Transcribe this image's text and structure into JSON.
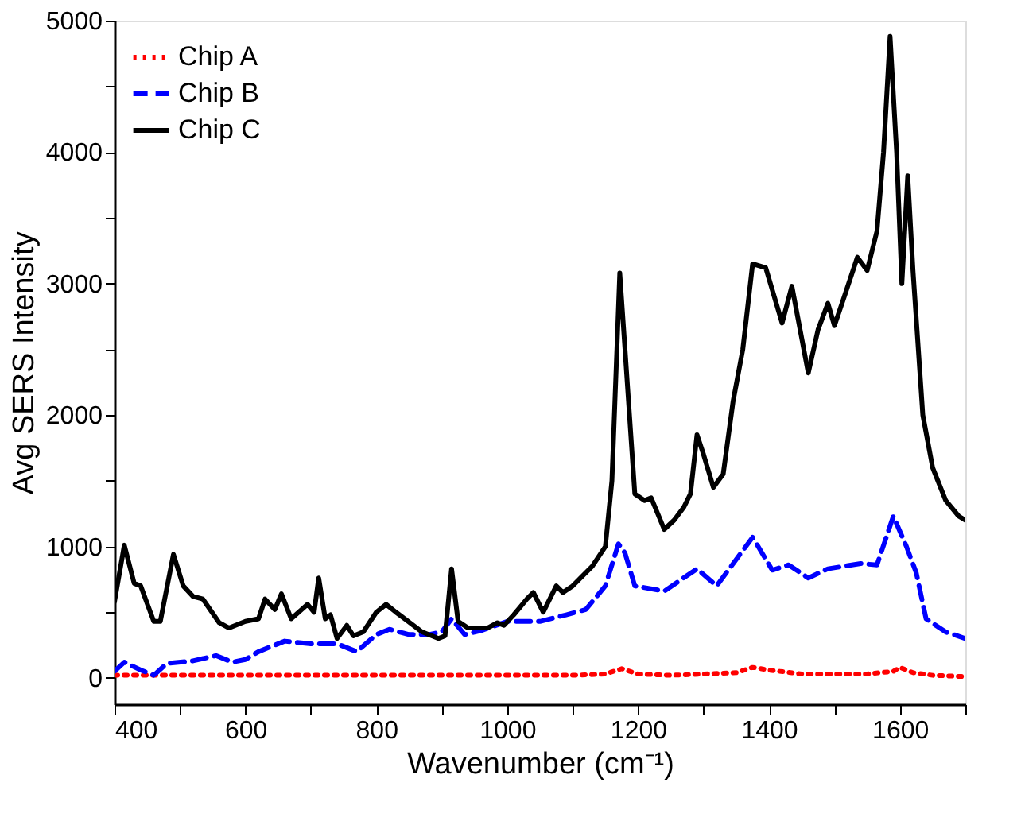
{
  "chart_data": {
    "type": "line",
    "xlabel": "Wavenumber (cm⁻¹)",
    "ylabel": "Avg SERS Intensity",
    "xlim": [
      400,
      1700
    ],
    "ylim": [
      -200,
      5000
    ],
    "xticks": [
      400,
      {
        "value": 500,
        "label": null
      },
      600,
      {
        "value": 700,
        "label": null
      },
      800,
      {
        "value": 900,
        "label": null
      },
      1000,
      {
        "value": 1100,
        "label": null
      },
      1200,
      {
        "value": 1300,
        "label": null
      },
      1400,
      {
        "value": 1500,
        "label": null
      },
      1600,
      {
        "value": 1700,
        "label": null
      }
    ],
    "yticks": [
      0,
      {
        "value": 500,
        "label": null
      },
      1000,
      {
        "value": 1500,
        "label": null
      },
      2000,
      {
        "value": 2500,
        "label": null
      },
      3000,
      {
        "value": 3500,
        "label": null
      },
      4000,
      {
        "value": 4500,
        "label": null
      },
      5000
    ],
    "grid": false,
    "legend": "top left",
    "series": [
      {
        "name": "Chip A",
        "color": "#ff0000",
        "line_style": "dotted",
        "x": [
          400,
          450,
          500,
          550,
          600,
          650,
          700,
          750,
          800,
          850,
          900,
          950,
          1000,
          1050,
          1100,
          1150,
          1175,
          1200,
          1250,
          1300,
          1350,
          1375,
          1400,
          1450,
          1500,
          1550,
          1590,
          1600,
          1620,
          1650,
          1700
        ],
        "values": [
          20,
          20,
          20,
          20,
          20,
          20,
          20,
          20,
          20,
          20,
          20,
          20,
          20,
          20,
          20,
          30,
          70,
          30,
          20,
          30,
          40,
          80,
          60,
          30,
          30,
          30,
          50,
          80,
          40,
          20,
          10
        ]
      },
      {
        "name": "Chip B",
        "color": "#0000ff",
        "line_style": "dashed",
        "x": [
          400,
          415,
          440,
          460,
          480,
          520,
          555,
          580,
          600,
          620,
          660,
          700,
          740,
          770,
          800,
          820,
          850,
          880,
          900,
          915,
          935,
          960,
          1000,
          1050,
          1090,
          1120,
          1150,
          1170,
          1180,
          1195,
          1240,
          1290,
          1320,
          1375,
          1405,
          1430,
          1460,
          1490,
          1540,
          1565,
          1590,
          1610,
          1625,
          1640,
          1670,
          1700
        ],
        "values": [
          50,
          120,
          60,
          20,
          110,
          130,
          170,
          120,
          140,
          200,
          280,
          260,
          260,
          200,
          330,
          370,
          330,
          330,
          350,
          450,
          330,
          360,
          430,
          430,
          480,
          520,
          700,
          1020,
          950,
          700,
          660,
          830,
          700,
          1070,
          820,
          860,
          760,
          830,
          870,
          860,
          1230,
          1000,
          800,
          450,
          350,
          300
        ]
      },
      {
        "name": "Chip C",
        "color": "#000000",
        "line_style": "solid",
        "x": [
          400,
          415,
          430,
          440,
          460,
          470,
          490,
          505,
          520,
          535,
          560,
          575,
          600,
          620,
          630,
          645,
          655,
          670,
          695,
          705,
          712,
          722,
          730,
          740,
          755,
          765,
          780,
          800,
          815,
          830,
          870,
          895,
          905,
          915,
          925,
          940,
          970,
          985,
          995,
          1010,
          1030,
          1040,
          1055,
          1075,
          1085,
          1100,
          1130,
          1150,
          1160,
          1172,
          1180,
          1195,
          1210,
          1220,
          1240,
          1255,
          1270,
          1280,
          1290,
          1300,
          1315,
          1330,
          1345,
          1360,
          1375,
          1395,
          1420,
          1435,
          1460,
          1475,
          1490,
          1500,
          1515,
          1535,
          1550,
          1565,
          1575,
          1585,
          1595,
          1603,
          1612,
          1620,
          1635,
          1650,
          1670,
          1690,
          1700
        ],
        "values": [
          580,
          1010,
          720,
          700,
          430,
          430,
          940,
          700,
          620,
          600,
          420,
          380,
          430,
          450,
          600,
          520,
          640,
          450,
          560,
          500,
          760,
          450,
          480,
          300,
          400,
          320,
          350,
          500,
          560,
          500,
          350,
          300,
          320,
          830,
          430,
          380,
          380,
          420,
          400,
          480,
          600,
          650,
          500,
          700,
          650,
          700,
          850,
          1000,
          1500,
          3080,
          2500,
          1400,
          1350,
          1370,
          1130,
          1200,
          1300,
          1400,
          1850,
          1700,
          1450,
          1550,
          2100,
          2500,
          3150,
          3120,
          2700,
          2980,
          2320,
          2650,
          2850,
          2680,
          2900,
          3200,
          3100,
          3400,
          4000,
          4880,
          4000,
          3000,
          3820,
          3100,
          2000,
          1600,
          1350,
          1230,
          1200
        ]
      }
    ]
  }
}
